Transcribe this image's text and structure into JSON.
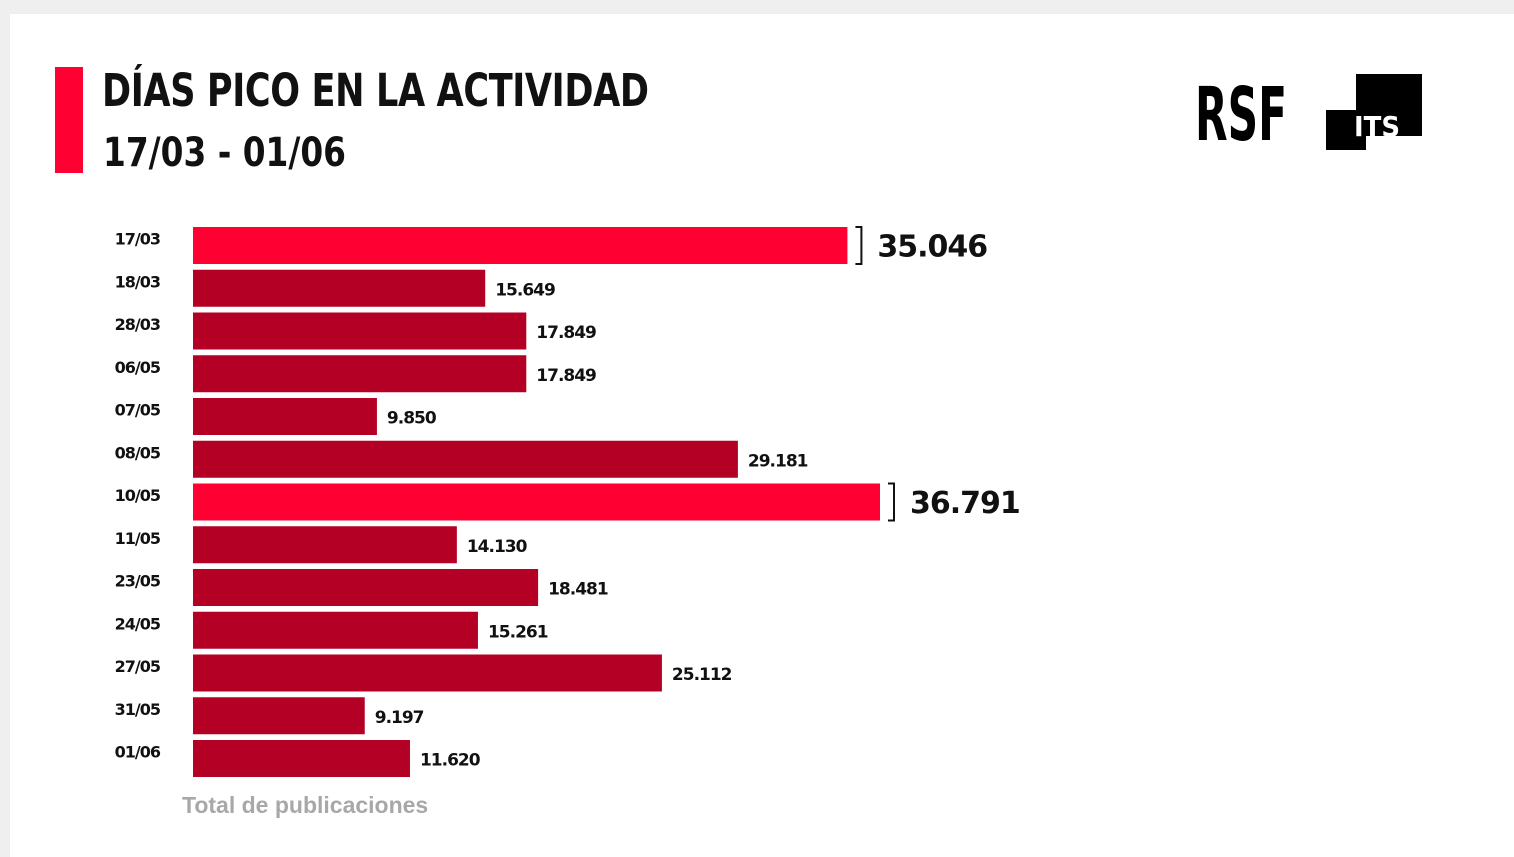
{
  "header": {
    "title": "DÍAS PICO EN LA ACTIVIDAD",
    "subtitle": "17/03 - 01/06"
  },
  "logos": {
    "rsf": "RSF",
    "its": "ITS"
  },
  "colors": {
    "accent": "#ff0033",
    "bar": "#b30024",
    "highlight": "#ff0033",
    "footer": "#a8a8a8"
  },
  "chart_data": {
    "type": "bar",
    "orientation": "horizontal",
    "categories": [
      "17/03",
      "18/03",
      "28/03",
      "06/05",
      "07/05",
      "08/05",
      "10/05",
      "11/05",
      "23/05",
      "24/05",
      "27/05",
      "31/05",
      "01/06"
    ],
    "values": [
      35046,
      15649,
      17849,
      17849,
      9850,
      29181,
      36791,
      14130,
      18481,
      15261,
      25112,
      9197,
      11620
    ],
    "value_labels": [
      "35.046",
      "15.649",
      "17.849",
      "17.849",
      "9.850",
      "29.181",
      "36.791",
      "14.130",
      "18.481",
      "15.261",
      "25.112",
      "9.197",
      "11.620"
    ],
    "highlighted": [
      "17/03",
      "10/05"
    ],
    "xlabel": "Total de publicaciones",
    "ylabel": "",
    "xlim": [
      0,
      36791
    ],
    "grid": false,
    "legend": "none"
  }
}
